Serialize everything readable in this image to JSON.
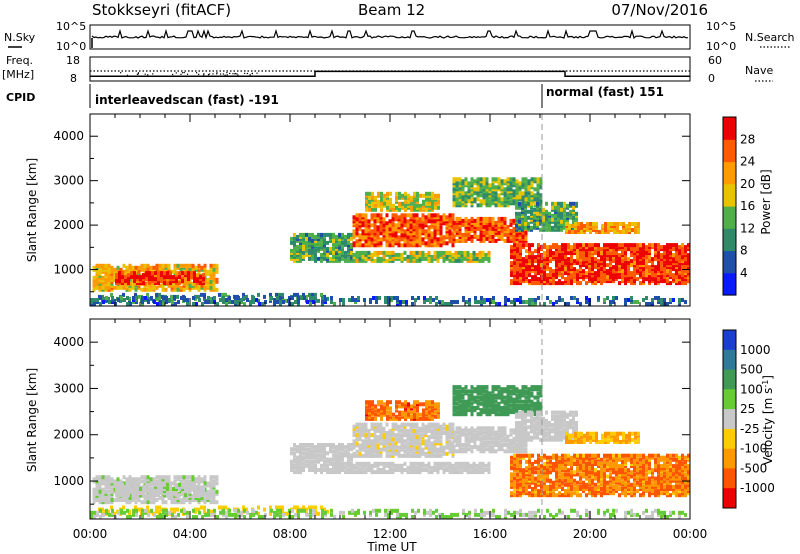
{
  "header": {
    "station": "Stokkseyri (fitACF)",
    "beam": "Beam 12",
    "date": "07/Nov/2016"
  },
  "nsky_panel": {
    "left_label": "N.Sky",
    "right_label": "N.Search",
    "left_ticks": [
      "10^5",
      "10^0"
    ],
    "right_ticks": [
      "10^5",
      "10^0"
    ]
  },
  "freq_panel": {
    "left_label_1": "Freq.",
    "left_label_2": "[MHz]",
    "right_label": "Nave",
    "left_ticks": [
      "18",
      "8"
    ],
    "right_ticks": [
      "60",
      "0"
    ]
  },
  "cpid_panel": {
    "label": "CPID",
    "programs": [
      {
        "name": "interleavedscan (fast) -191",
        "start_hour": 0
      },
      {
        "name": "normal (fast) 151",
        "start_hour": 18
      }
    ]
  },
  "time_axis": {
    "label": "Time UT",
    "ticks": [
      "00:00",
      "04:00",
      "08:00",
      "12:00",
      "16:00",
      "20:00",
      "00:00"
    ]
  },
  "range_axis": {
    "label": "Slant Range [km]",
    "ticks": [
      "1000",
      "2000",
      "3000",
      "4000"
    ]
  },
  "power_scale": {
    "label": "Power [dB]",
    "ticks": [
      "4",
      "8",
      "12",
      "16",
      "20",
      "24",
      "28"
    ],
    "colors": [
      "#0a1aff",
      "#1f4fa8",
      "#2f8a6a",
      "#4fb04a",
      "#e8c400",
      "#ff9a00",
      "#ff5a00",
      "#ee0000"
    ]
  },
  "velocity_scale": {
    "label": "Velocity [m s",
    "label_sup": "-1",
    "label_end": "]",
    "ticks": [
      "1000",
      "500",
      "100",
      "25",
      "-25",
      "-100",
      "-500",
      "-1000"
    ],
    "colors": [
      "#1a3fd0",
      "#2d7a9a",
      "#3f9a55",
      "#66cc33",
      "#c8c8c8",
      "#ffcc00",
      "#ff9900",
      "#ff5500",
      "#ee0000"
    ]
  },
  "chart_data": {
    "type": "heatmap",
    "x_range_hours": [
      0,
      24
    ],
    "y_range_km": [
      180,
      4500
    ],
    "freq_mhz": [
      {
        "from": 0,
        "to": 9,
        "value": 10
      },
      {
        "from": 9,
        "to": 18,
        "value": 12
      },
      {
        "from": 18,
        "to": 19,
        "value": 12
      },
      {
        "from": 19,
        "to": 24,
        "value": 10
      }
    ],
    "echo_regions": [
      {
        "t0": 0.1,
        "t1": 5.1,
        "r0": 500,
        "r1": 1050,
        "power": 20,
        "velocity": 10
      },
      {
        "t0": 1.0,
        "t1": 4.5,
        "r0": 650,
        "r1": 900,
        "power": 28,
        "velocity": 10
      },
      {
        "t0": 0.2,
        "t1": 9.5,
        "r0": 250,
        "r1": 400,
        "power": 10,
        "velocity": -80
      },
      {
        "t0": 8.0,
        "t1": 10.5,
        "r0": 1150,
        "r1": 1750,
        "power": 12,
        "velocity": 0
      },
      {
        "t0": 10.5,
        "t1": 14.5,
        "r0": 1500,
        "r1": 2200,
        "power": 26,
        "velocity": -10
      },
      {
        "t0": 14.5,
        "t1": 17.5,
        "r0": 1600,
        "r1": 2100,
        "power": 26,
        "velocity": 0
      },
      {
        "t0": 10.5,
        "t1": 16.0,
        "r0": 1150,
        "r1": 1350,
        "power": 16,
        "velocity": 0
      },
      {
        "t0": 11.0,
        "t1": 14.0,
        "r0": 2300,
        "r1": 2700,
        "power": 18,
        "velocity": -600
      },
      {
        "t0": 14.5,
        "t1": 18.0,
        "r0": 2400,
        "r1": 3000,
        "power": 14,
        "velocity": 200
      },
      {
        "t0": 16.8,
        "t1": 24.0,
        "r0": 650,
        "r1": 1550,
        "power": 28,
        "velocity": -500
      },
      {
        "t0": 17.0,
        "t1": 19.5,
        "r0": 1850,
        "r1": 2450,
        "power": 12,
        "velocity": 0
      },
      {
        "t0": 19.0,
        "t1": 22.0,
        "r0": 1800,
        "r1": 2000,
        "power": 22,
        "velocity": -100
      },
      {
        "t0": 0.0,
        "t1": 24.0,
        "r0": 180,
        "r1": 320,
        "power": 8,
        "velocity": 30
      }
    ]
  }
}
